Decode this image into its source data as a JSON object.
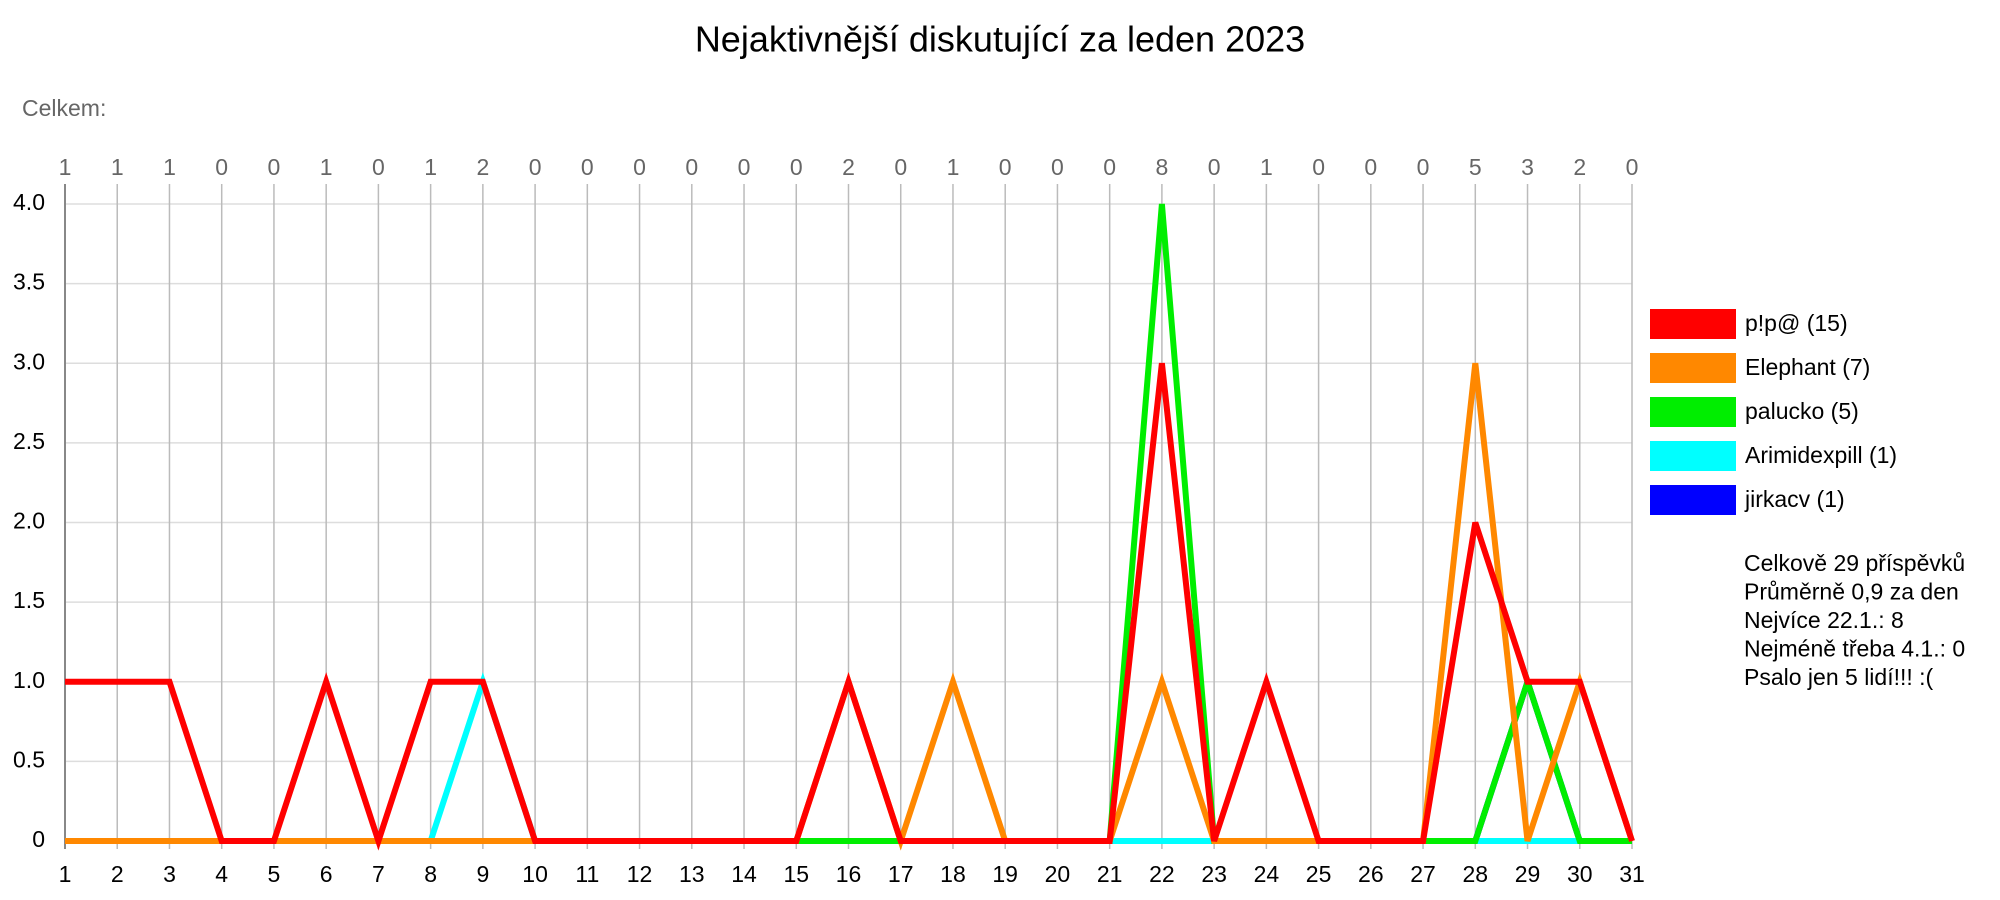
{
  "chart_data": {
    "type": "line",
    "title": "Nejaktivnější diskutující za leden 2023",
    "totals_label": "Celkem:",
    "totals": [
      1,
      1,
      1,
      0,
      0,
      1,
      0,
      1,
      2,
      0,
      0,
      0,
      0,
      0,
      0,
      2,
      0,
      1,
      0,
      0,
      0,
      8,
      0,
      1,
      0,
      0,
      0,
      5,
      3,
      2,
      0
    ],
    "x": [
      1,
      2,
      3,
      4,
      5,
      6,
      7,
      8,
      9,
      10,
      11,
      12,
      13,
      14,
      15,
      16,
      17,
      18,
      19,
      20,
      21,
      22,
      23,
      24,
      25,
      26,
      27,
      28,
      29,
      30,
      31
    ],
    "xlim": [
      1,
      31
    ],
    "xticks": [
      1,
      2,
      3,
      4,
      5,
      6,
      7,
      8,
      9,
      10,
      11,
      12,
      13,
      14,
      15,
      16,
      17,
      18,
      19,
      20,
      21,
      22,
      23,
      24,
      25,
      26,
      27,
      28,
      29,
      30,
      31
    ],
    "ylim": [
      0,
      4
    ],
    "yticks": [
      0,
      0.5,
      {
        "value": 1,
        "label": "1.0"
      },
      1.5,
      {
        "value": 2,
        "label": "2.0"
      },
      2.5,
      {
        "value": 3,
        "label": "3.0"
      },
      3.5,
      {
        "value": 4,
        "label": "4.0"
      }
    ],
    "grid": true,
    "series": [
      {
        "name": "p!p@ (15)",
        "color": "#ff0000",
        "values": [
          1,
          1,
          1,
          0,
          0,
          1,
          0,
          1,
          1,
          0,
          0,
          0,
          0,
          0,
          0,
          1,
          0,
          0,
          0,
          0,
          0,
          3,
          0,
          1,
          0,
          0,
          0,
          2,
          1,
          1,
          0
        ]
      },
      {
        "name": "Elephant (7)",
        "color": "#ff8800",
        "values": [
          0,
          0,
          0,
          0,
          0,
          0,
          0,
          0,
          0,
          0,
          0,
          0,
          0,
          0,
          0,
          1,
          0,
          1,
          0,
          0,
          0,
          1,
          0,
          0,
          0,
          0,
          0,
          3,
          0,
          1,
          0
        ]
      },
      {
        "name": "palucko (5)",
        "color": "#00ee00",
        "values": [
          0,
          0,
          0,
          0,
          0,
          0,
          0,
          0,
          0,
          0,
          0,
          0,
          0,
          0,
          0,
          0,
          0,
          0,
          0,
          0,
          0,
          4,
          0,
          0,
          0,
          0,
          0,
          0,
          1,
          0,
          0
        ]
      },
      {
        "name": "Arimidexpill (1)",
        "color": "#00ffff",
        "values": [
          0,
          0,
          0,
          0,
          0,
          0,
          0,
          0,
          1,
          0,
          0,
          0,
          0,
          0,
          0,
          0,
          0,
          0,
          0,
          0,
          0,
          0,
          0,
          0,
          0,
          0,
          0,
          0,
          0,
          0,
          0
        ]
      },
      {
        "name": "jirkacv (1)",
        "color": "#0000ff",
        "values": [
          0,
          0,
          0,
          0,
          0,
          0,
          0,
          0,
          0,
          0,
          0,
          0,
          0,
          0,
          0,
          0,
          0,
          0,
          0,
          0,
          0,
          0,
          0,
          0,
          0,
          0,
          0,
          0,
          1,
          0,
          0
        ]
      }
    ],
    "legend": "right",
    "stats": [
      "Celkově 29 příspěvků",
      "Průměrně 0,9 za den",
      "Nejvíce 22.1.: 8",
      "Nejméně třeba 4.1.: 0",
      "Psalo jen 5 lidí!!! :("
    ]
  }
}
